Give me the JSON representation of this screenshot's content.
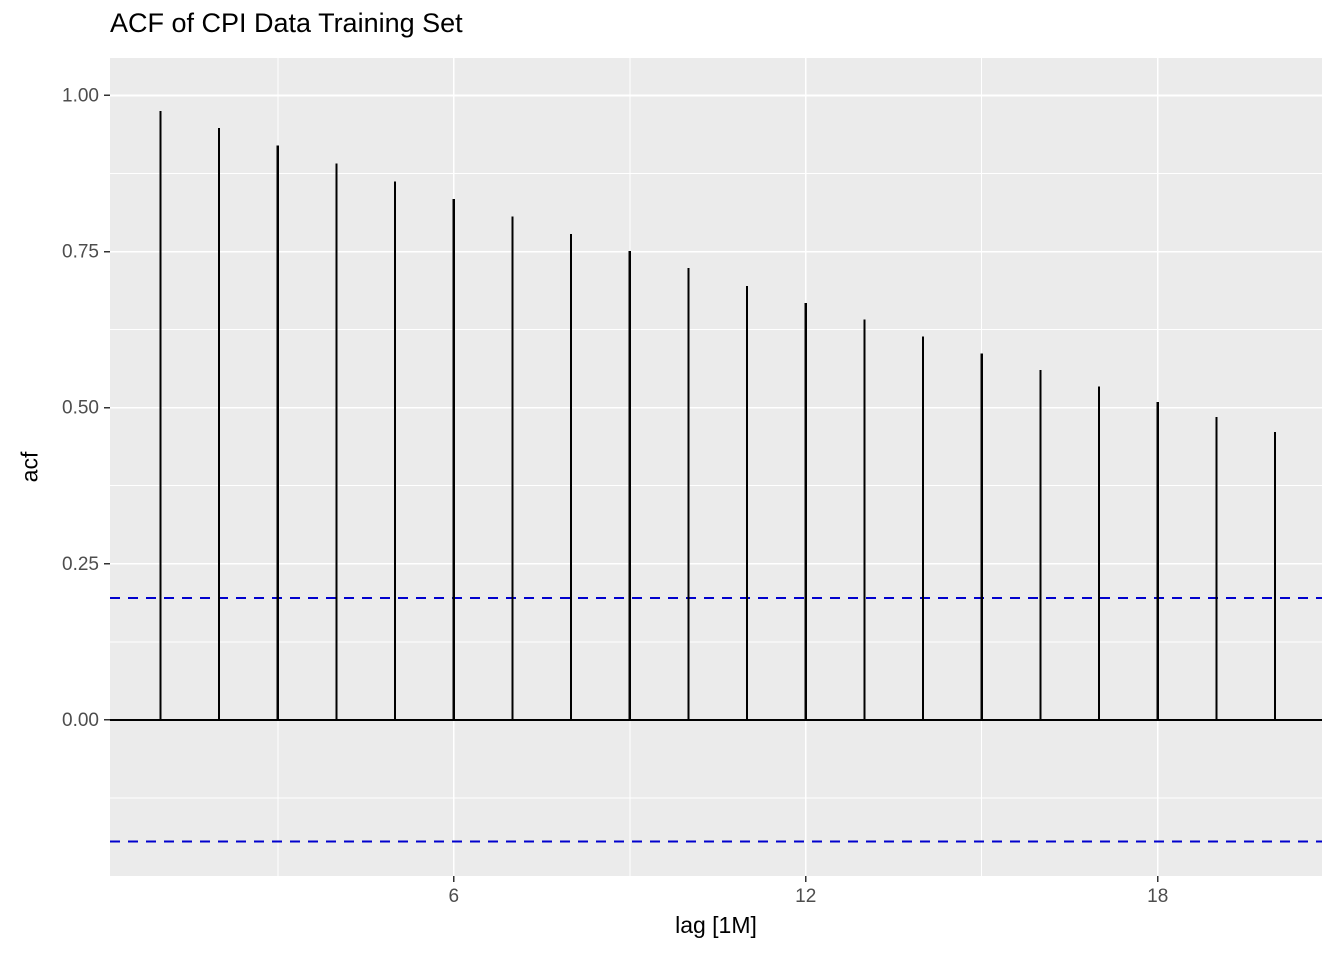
{
  "chart_data": {
    "type": "bar",
    "subtype": "acf-vertical-segments",
    "title": "ACF of CPI Data Training Set",
    "xlabel": "lag [1M]",
    "ylabel": "acf",
    "x": [
      1,
      2,
      3,
      4,
      5,
      6,
      7,
      8,
      9,
      10,
      11,
      12,
      13,
      14,
      15,
      16,
      17,
      18,
      19,
      20
    ],
    "values": [
      0.975,
      0.948,
      0.92,
      0.891,
      0.862,
      0.834,
      0.806,
      0.778,
      0.751,
      0.724,
      0.695,
      0.668,
      0.641,
      0.614,
      0.587,
      0.56,
      0.534,
      0.509,
      0.485,
      0.461
    ],
    "confidence_upper": 0.195,
    "confidence_lower": -0.195,
    "zero_line": 0,
    "xlim": [
      0.14,
      20.8
    ],
    "ylim": [
      -0.25,
      1.06
    ],
    "xticks": {
      "values": [
        6,
        12,
        18
      ],
      "labels": [
        "6",
        "12",
        "18"
      ]
    },
    "yticks": {
      "values": [
        0,
        0.25,
        0.5,
        0.75,
        1
      ],
      "labels": [
        "0.00",
        "0.25",
        "0.50",
        "0.75",
        "1.00"
      ]
    },
    "minor_xticks": [
      3,
      9,
      15
    ],
    "minor_yticks": [
      -0.125,
      0.125,
      0.375,
      0.625,
      0.875
    ],
    "grid": true,
    "legend": false,
    "colors": {
      "panel_background": "#EBEBEB",
      "figure_background": "#FFFFFF",
      "gridline": "#FFFFFF",
      "segment": "#000000",
      "zero_line": "#000000",
      "confidence_line": "#0000CD",
      "tick_mark": "#333333",
      "tick_label": "#4D4D4D",
      "axis_title": "#000000",
      "title": "#000000"
    }
  }
}
